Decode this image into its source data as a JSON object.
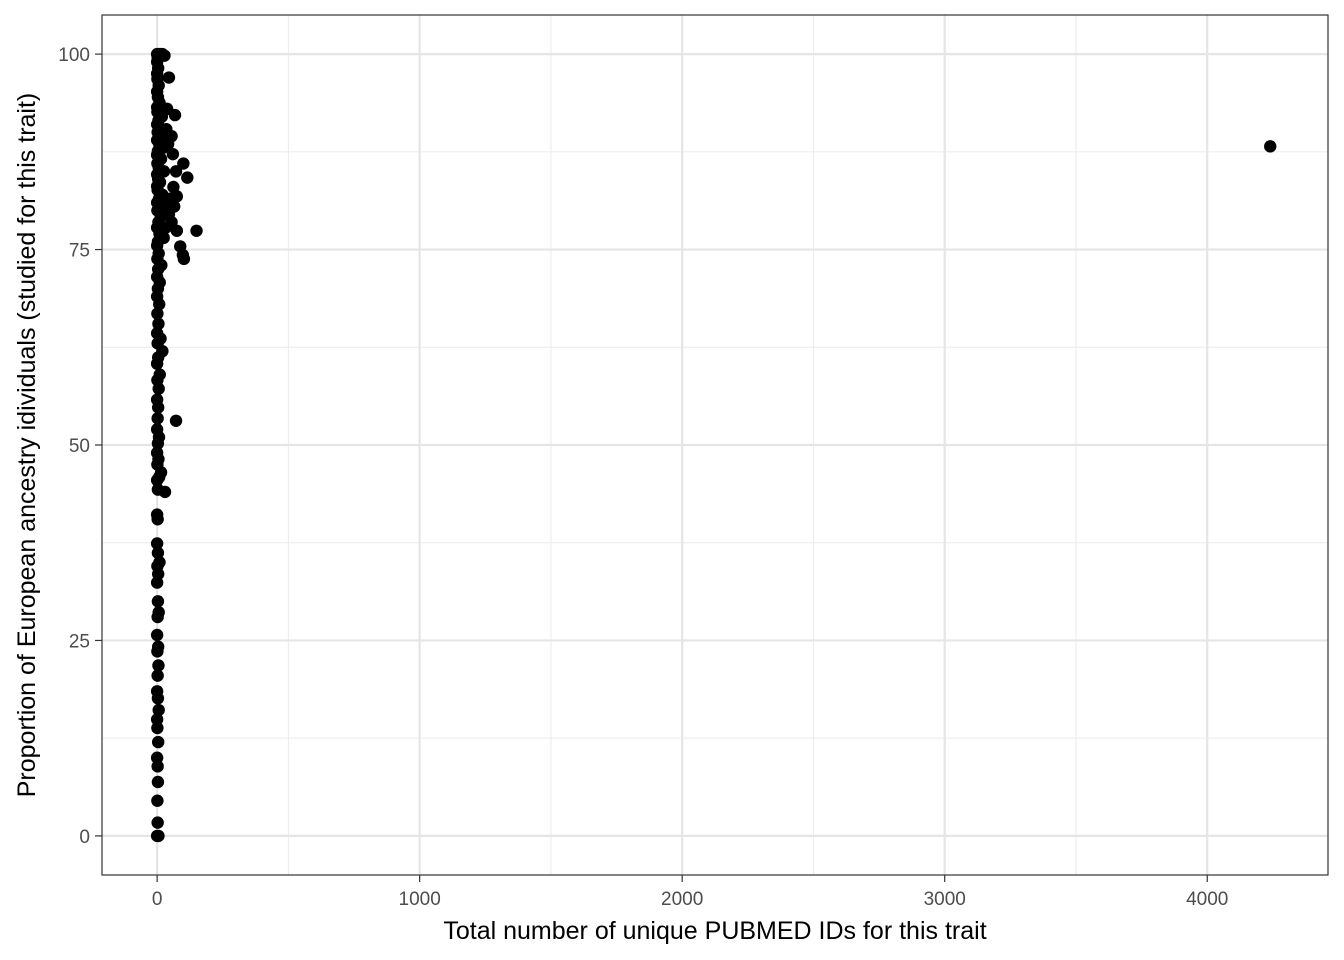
{
  "chart_data": {
    "type": "scatter",
    "title": "",
    "xlabel": "Total number of unique PUBMED IDs for this trait",
    "ylabel": "Proportion of European ancestry idividuals (studied for this trait)",
    "xlim": [
      -210,
      4460
    ],
    "ylim": [
      -5,
      105
    ],
    "x_ticks": [
      0,
      1000,
      2000,
      3000,
      4000
    ],
    "x_tick_labels": [
      "0",
      "1000",
      "2000",
      "3000",
      "4000"
    ],
    "y_ticks": [
      0,
      25,
      50,
      75,
      100
    ],
    "y_tick_labels": [
      "0",
      "25",
      "50",
      "75",
      "100"
    ],
    "grid": true,
    "legend": "none",
    "point_color": "#000000",
    "series": [
      {
        "points": [
          [
            0,
            0
          ],
          [
            5,
            0
          ],
          [
            2,
            1.7
          ],
          [
            1,
            4.5
          ],
          [
            3,
            6.9
          ],
          [
            2,
            8.9
          ],
          [
            0,
            10.0
          ],
          [
            4,
            12.0
          ],
          [
            1,
            13.8
          ],
          [
            0,
            14.9
          ],
          [
            6,
            16.1
          ],
          [
            3,
            17.6
          ],
          [
            0,
            18.5
          ],
          [
            2,
            20.5
          ],
          [
            5,
            21.8
          ],
          [
            1,
            23.6
          ],
          [
            4,
            24.2
          ],
          [
            0,
            25.7
          ],
          [
            2,
            28.0
          ],
          [
            6,
            28.6
          ],
          [
            3,
            30.0
          ],
          [
            0,
            32.4
          ],
          [
            4,
            33.5
          ],
          [
            1,
            34.5
          ],
          [
            9,
            35.0
          ],
          [
            3,
            36.2
          ],
          [
            0,
            37.4
          ],
          [
            2,
            40.5
          ],
          [
            0,
            41.1
          ],
          [
            30,
            44.0
          ],
          [
            3,
            44.3
          ],
          [
            0,
            45.5
          ],
          [
            8,
            45.9
          ],
          [
            15,
            46.5
          ],
          [
            1,
            47.5
          ],
          [
            5,
            48.2
          ],
          [
            0,
            49.0
          ],
          [
            3,
            50.2
          ],
          [
            7,
            51.0
          ],
          [
            0,
            52.0
          ],
          [
            2,
            53.4
          ],
          [
            72,
            53.1
          ],
          [
            4,
            54.8
          ],
          [
            0,
            55.8
          ],
          [
            6,
            57.2
          ],
          [
            1,
            58.3
          ],
          [
            10,
            59.0
          ],
          [
            0,
            60.4
          ],
          [
            4,
            61.2
          ],
          [
            20,
            62.0
          ],
          [
            2,
            63.0
          ],
          [
            13,
            63.6
          ],
          [
            0,
            64.3
          ],
          [
            5,
            65.5
          ],
          [
            1,
            66.8
          ],
          [
            8,
            68.0
          ],
          [
            0,
            69.0
          ],
          [
            3,
            70.0
          ],
          [
            10,
            70.8
          ],
          [
            0,
            71.5
          ],
          [
            4,
            72.5
          ],
          [
            16,
            73.0
          ],
          [
            1,
            73.8
          ],
          [
            6,
            74.5
          ],
          [
            0,
            75.5
          ],
          [
            3,
            76.0
          ],
          [
            25,
            76.5
          ],
          [
            9,
            77.0
          ],
          [
            0,
            77.8
          ],
          [
            5,
            78.5
          ],
          [
            14,
            79.2
          ],
          [
            1,
            80.0
          ],
          [
            30,
            80.5
          ],
          [
            0,
            81.0
          ],
          [
            7,
            81.5
          ],
          [
            20,
            82.0
          ],
          [
            2,
            82.6
          ],
          [
            0,
            83.1
          ],
          [
            11,
            83.6
          ],
          [
            4,
            84.0
          ],
          [
            0,
            84.6
          ],
          [
            26,
            85.0
          ],
          [
            6,
            85.5
          ],
          [
            1,
            86.0
          ],
          [
            15,
            86.6
          ],
          [
            0,
            87.1
          ],
          [
            3,
            87.6
          ],
          [
            22,
            88.0
          ],
          [
            8,
            88.5
          ],
          [
            0,
            89.0
          ],
          [
            12,
            89.5
          ],
          [
            2,
            90.0
          ],
          [
            35,
            90.4
          ],
          [
            0,
            91.0
          ],
          [
            5,
            91.5
          ],
          [
            18,
            92.0
          ],
          [
            1,
            92.6
          ],
          [
            0,
            93.2
          ],
          [
            9,
            93.8
          ],
          [
            3,
            94.5
          ],
          [
            0,
            95.2
          ],
          [
            6,
            96.0
          ],
          [
            1,
            96.8
          ],
          [
            0,
            97.5
          ],
          [
            4,
            98.2
          ],
          [
            0,
            99.0
          ],
          [
            2,
            99.6
          ],
          [
            0,
            100
          ],
          [
            6,
            100
          ],
          [
            12,
            100
          ],
          [
            20,
            100
          ],
          [
            28,
            99.8
          ],
          [
            45,
            97.0
          ],
          [
            38,
            93.0
          ],
          [
            68,
            92.2
          ],
          [
            55,
            89.5
          ],
          [
            42,
            88.5
          ],
          [
            60,
            87.2
          ],
          [
            100,
            86.0
          ],
          [
            72,
            85.0
          ],
          [
            115,
            84.2
          ],
          [
            62,
            83.0
          ],
          [
            75,
            81.8
          ],
          [
            50,
            81.5
          ],
          [
            65,
            80.5
          ],
          [
            45,
            79.5
          ],
          [
            55,
            78.5
          ],
          [
            33,
            77.8
          ],
          [
            75,
            77.4
          ],
          [
            150,
            77.4
          ],
          [
            88,
            75.4
          ],
          [
            98,
            74.3
          ],
          [
            102,
            73.8
          ],
          [
            4240,
            88.2
          ]
        ]
      }
    ]
  }
}
